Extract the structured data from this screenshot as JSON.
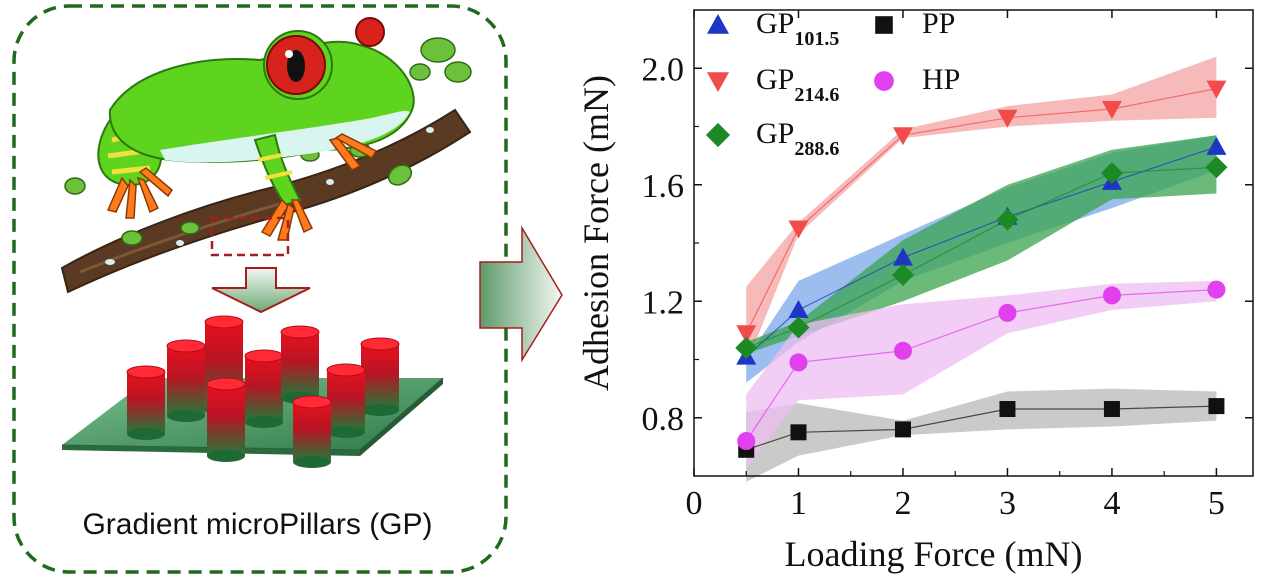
{
  "illustration": {
    "caption": "Gradient microPillars (GP)",
    "subject_icon": "tree-frog-icon",
    "arrow_icon": "arrow-right-icon",
    "colors": {
      "frame": "#1e6b1e",
      "frog_body": "#5ed41e",
      "frog_belly": "#d9f5ef",
      "frog_eye": "#d8231c",
      "frog_foot": "#ff7a1a",
      "branch": "#5a3a22",
      "leaf": "#6cc13a",
      "pillar_top": "#e8101e",
      "pillar_bottom": "#1f7a3a",
      "substrate": "#4a9a66"
    }
  },
  "chart_data": {
    "type": "scatter",
    "title": "",
    "xlabel": "Loading Force (mN)",
    "ylabel": "Adhesion Force (mN)",
    "xlim": [
      0,
      5.35
    ],
    "ylim": [
      0.6,
      2.2
    ],
    "xticks": [
      0,
      1,
      2,
      3,
      4,
      5
    ],
    "xtick_labels": [
      "0",
      "1",
      "2",
      "3",
      "4",
      "5"
    ],
    "yticks": [
      0.8,
      1.2,
      1.6,
      2.0
    ],
    "ytick_labels": [
      "0.8",
      "1.2",
      "1.6",
      "2.0"
    ],
    "grid": false,
    "legend_position": "top-left",
    "series": [
      {
        "name": "GP",
        "sub": "101.5",
        "marker": "triangle-up",
        "color": "#1f35c4",
        "band_color": "#7aa8ea",
        "x": [
          0.5,
          1,
          2,
          3,
          4,
          5
        ],
        "y": [
          1.01,
          1.17,
          1.35,
          1.49,
          1.61,
          1.73
        ],
        "band_upper": [
          1.0,
          1.27,
          1.43,
          1.59,
          1.71,
          1.77
        ],
        "band_lower": [
          0.92,
          1.06,
          1.27,
          1.4,
          1.52,
          1.65
        ]
      },
      {
        "name": "GP",
        "sub": "214.6",
        "marker": "triangle-down",
        "color": "#f24b4b",
        "band_color": "#f4a3a3",
        "x": [
          0.5,
          1,
          2,
          3,
          4,
          5
        ],
        "y": [
          1.09,
          1.45,
          1.77,
          1.83,
          1.86,
          1.93
        ],
        "band_upper": [
          1.25,
          1.47,
          1.79,
          1.87,
          1.91,
          2.04
        ],
        "band_lower": [
          0.98,
          1.43,
          1.76,
          1.8,
          1.82,
          1.83
        ]
      },
      {
        "name": "GP",
        "sub": "288.6",
        "marker": "diamond",
        "color": "#1c8a24",
        "band_color": "#3aa34e",
        "x": [
          0.5,
          1,
          2,
          3,
          4,
          5
        ],
        "y": [
          1.04,
          1.11,
          1.29,
          1.48,
          1.64,
          1.66
        ],
        "band_upper": [
          1.06,
          1.13,
          1.41,
          1.6,
          1.72,
          1.77
        ],
        "band_lower": [
          1.02,
          1.08,
          1.2,
          1.34,
          1.55,
          1.57
        ]
      },
      {
        "name": "PP",
        "sub": "",
        "marker": "square",
        "color": "#111111",
        "band_color": "#b8b8b8",
        "x": [
          0.5,
          1,
          2,
          3,
          4,
          5
        ],
        "y": [
          0.69,
          0.75,
          0.76,
          0.83,
          0.83,
          0.84
        ],
        "band_upper": [
          0.82,
          0.85,
          0.79,
          0.89,
          0.9,
          0.89
        ],
        "band_lower": [
          0.58,
          0.67,
          0.74,
          0.76,
          0.77,
          0.79
        ]
      },
      {
        "name": "HP",
        "sub": "",
        "marker": "circle",
        "color": "#e040ee",
        "band_color": "#eebcf2",
        "x": [
          0.5,
          1,
          2,
          3,
          4,
          5
        ],
        "y": [
          0.72,
          0.99,
          1.03,
          1.16,
          1.22,
          1.24
        ],
        "band_upper": [
          0.88,
          1.12,
          1.19,
          1.22,
          1.26,
          1.27
        ],
        "band_lower": [
          0.63,
          0.86,
          0.88,
          1.09,
          1.17,
          1.2
        ]
      }
    ]
  }
}
